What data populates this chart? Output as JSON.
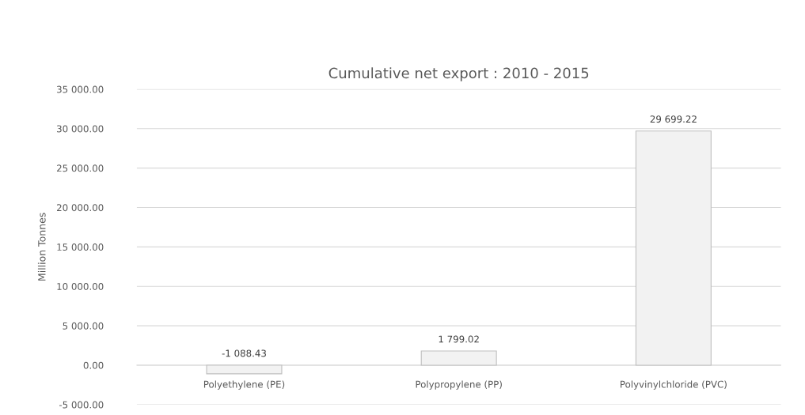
{
  "chart_data": {
    "type": "bar",
    "title": "Cumulative net export : 2010 - 2015",
    "ylabel": "Million Tonnes",
    "categories": [
      "Polyethylene (PE)",
      "Polypropylene (PP)",
      "Polyvinylchloride (PVC)"
    ],
    "values": [
      -1088.43,
      1799.02,
      29699.22
    ],
    "value_labels": [
      "-1 088.43",
      "1 799.02",
      "29 699.22"
    ],
    "color": "#f2f2f2",
    "ylim": [
      -5000,
      35000
    ],
    "yticks": [
      {
        "value": -5000,
        "label": "-5 000.00"
      },
      {
        "value": 0,
        "label": "0.00"
      },
      {
        "value": 5000,
        "label": "5 000.00"
      },
      {
        "value": 10000,
        "label": "10 000.00"
      },
      {
        "value": 15000,
        "label": "15 000.00"
      },
      {
        "value": 20000,
        "label": "20 000.00"
      },
      {
        "value": 25000,
        "label": "25 000.00"
      },
      {
        "value": 30000,
        "label": "30 000.00"
      },
      {
        "value": 35000,
        "label": "35 000.00"
      }
    ],
    "grid": "y",
    "legend": false
  }
}
